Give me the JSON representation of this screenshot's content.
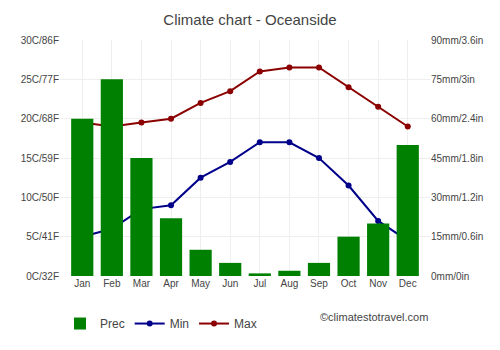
{
  "chart_data": {
    "type": "bar",
    "title": "Climate chart - Oceanside",
    "categories": [
      "Jan",
      "Feb",
      "Mar",
      "Apr",
      "May",
      "Jun",
      "Jul",
      "Aug",
      "Sep",
      "Oct",
      "Nov",
      "Dec"
    ],
    "series": [
      {
        "name": "Prec",
        "type": "bar",
        "axis": "y2",
        "color": "#008000",
        "values": [
          60,
          75,
          45,
          22,
          10,
          5,
          1,
          2,
          5,
          15,
          20,
          50
        ]
      },
      {
        "name": "Min",
        "type": "line",
        "color": "#00008B",
        "marker": "circle",
        "line_style": "solid",
        "values": [
          5,
          6,
          8.5,
          9,
          12.5,
          14.5,
          17,
          17,
          15,
          11.5,
          7,
          4.5
        ]
      },
      {
        "name": "Max",
        "type": "line",
        "color": "#8B0000",
        "marker": "circle",
        "line_style": "solid",
        "values": [
          19.5,
          19,
          19.5,
          20,
          22,
          23.5,
          26,
          26.5,
          26.5,
          24,
          21.5,
          19
        ]
      }
    ],
    "ylim": [
      0,
      30
    ],
    "yticks": [
      {
        "value": 0,
        "label": "0C/32F"
      },
      {
        "value": 5,
        "label": "5C/41F"
      },
      {
        "value": 10,
        "label": "10C/50F"
      },
      {
        "value": 15,
        "label": "15C/59F"
      },
      {
        "value": 20,
        "label": "20C/68F"
      },
      {
        "value": 25,
        "label": "25C/77F"
      },
      {
        "value": 30,
        "label": "30C/86F"
      }
    ],
    "y2lim": [
      0,
      90
    ],
    "y2ticks": [
      {
        "value": 0,
        "label": "0mm/0in"
      },
      {
        "value": 15,
        "label": "15mm/0.6in"
      },
      {
        "value": 30,
        "label": "30mm/1.2in"
      },
      {
        "value": 45,
        "label": "45mm/1.8in"
      },
      {
        "value": 60,
        "label": "60mm/2.4in"
      },
      {
        "value": 75,
        "label": "75mm/3in"
      },
      {
        "value": 90,
        "label": "90mm/3.6in"
      }
    ],
    "grid": true,
    "legend": "bottom",
    "annotations": [
      "©climatestotravel.com"
    ]
  }
}
